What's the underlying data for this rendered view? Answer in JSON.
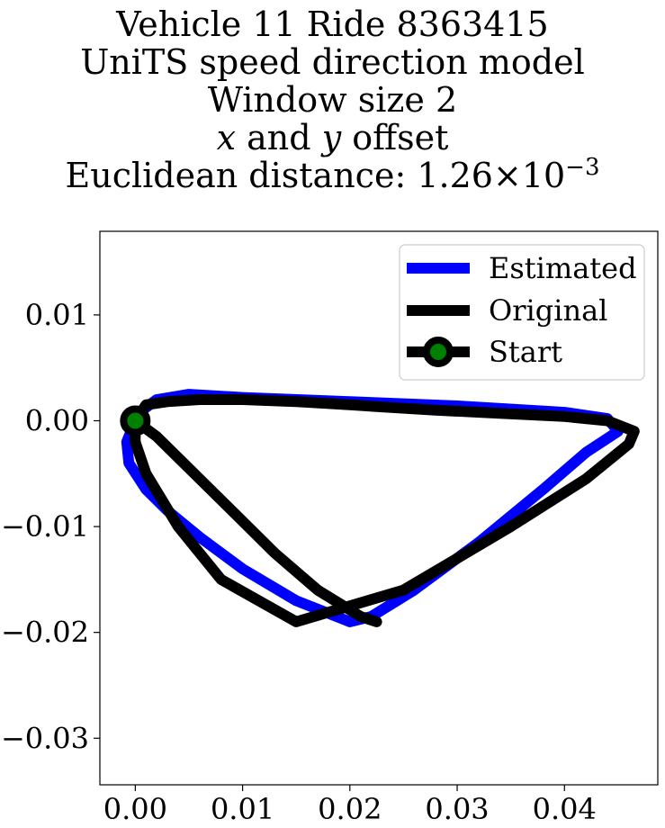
{
  "chart_data": {
    "type": "line",
    "title_lines": [
      "Vehicle 11 Ride 8363415",
      "UniTS speed direction model",
      "Window size 2"
    ],
    "title_offset_line": {
      "x_var": "x",
      "and": "and",
      "y_var": "y",
      "suffix": "offset"
    },
    "title_distance_line": {
      "prefix": "Euclidean distance:",
      "mantissa": "1.26",
      "times": "×",
      "base": "10",
      "exponent": "−3"
    },
    "xlabel": "",
    "ylabel": "",
    "xlim": [
      -0.0033,
      0.0487
    ],
    "ylim": [
      -0.0344,
      0.0179
    ],
    "x_ticks": [
      0.0,
      0.01,
      0.02,
      0.03,
      0.04
    ],
    "x_tick_labels": [
      "0.00",
      "0.01",
      "0.02",
      "0.03",
      "0.04"
    ],
    "y_ticks": [
      0.01,
      0.0,
      -0.01,
      -0.02,
      -0.03
    ],
    "y_tick_labels": [
      "0.01",
      "0.00",
      "−0.01",
      "−0.02",
      "−0.03"
    ],
    "grid": false,
    "legend": {
      "placement": "top-right",
      "entries": [
        "Estimated",
        "Original",
        "Start"
      ]
    },
    "series": [
      {
        "name": "Estimated",
        "color": "#0000ff",
        "x": [
          0.0,
          -0.0008,
          -0.0006,
          0.001,
          0.003,
          0.006,
          0.01,
          0.015,
          0.02,
          0.022,
          0.026,
          0.032,
          0.038,
          0.042,
          0.045,
          0.044,
          0.04,
          0.03,
          0.02,
          0.01,
          0.005,
          0.002,
          0.0
        ],
        "y": [
          0.0,
          -0.002,
          -0.004,
          -0.0065,
          -0.0085,
          -0.011,
          -0.014,
          -0.017,
          -0.019,
          -0.0185,
          -0.016,
          -0.0115,
          -0.0065,
          -0.003,
          -0.001,
          0.0002,
          0.0008,
          0.0014,
          0.0018,
          0.0022,
          0.0025,
          0.002,
          0.0005
        ]
      },
      {
        "name": "Original",
        "color": "#000000",
        "x": [
          0.0,
          0.001,
          0.003,
          0.006,
          0.01,
          0.015,
          0.02,
          0.023,
          0.028,
          0.034,
          0.04,
          0.044,
          0.0465,
          0.046,
          0.042,
          0.035,
          0.025,
          0.015,
          0.008,
          0.004,
          0.001,
          0.0,
          0.0,
          0.002,
          0.005,
          0.009,
          0.013,
          0.017,
          0.021,
          0.0225
        ],
        "y": [
          0.0,
          0.0015,
          0.0018,
          0.002,
          0.002,
          0.0018,
          0.0015,
          0.0013,
          0.001,
          0.0007,
          0.0004,
          0.0,
          -0.001,
          -0.0022,
          -0.0055,
          -0.01,
          -0.016,
          -0.019,
          -0.015,
          -0.01,
          -0.005,
          -0.002,
          0.0,
          -0.0015,
          -0.0045,
          -0.0085,
          -0.0125,
          -0.016,
          -0.0185,
          -0.019
        ]
      }
    ],
    "start_point": {
      "name": "Start",
      "x": 0.0,
      "y": 0.0,
      "marker_face": "#008000",
      "marker_edge": "#000000"
    }
  }
}
